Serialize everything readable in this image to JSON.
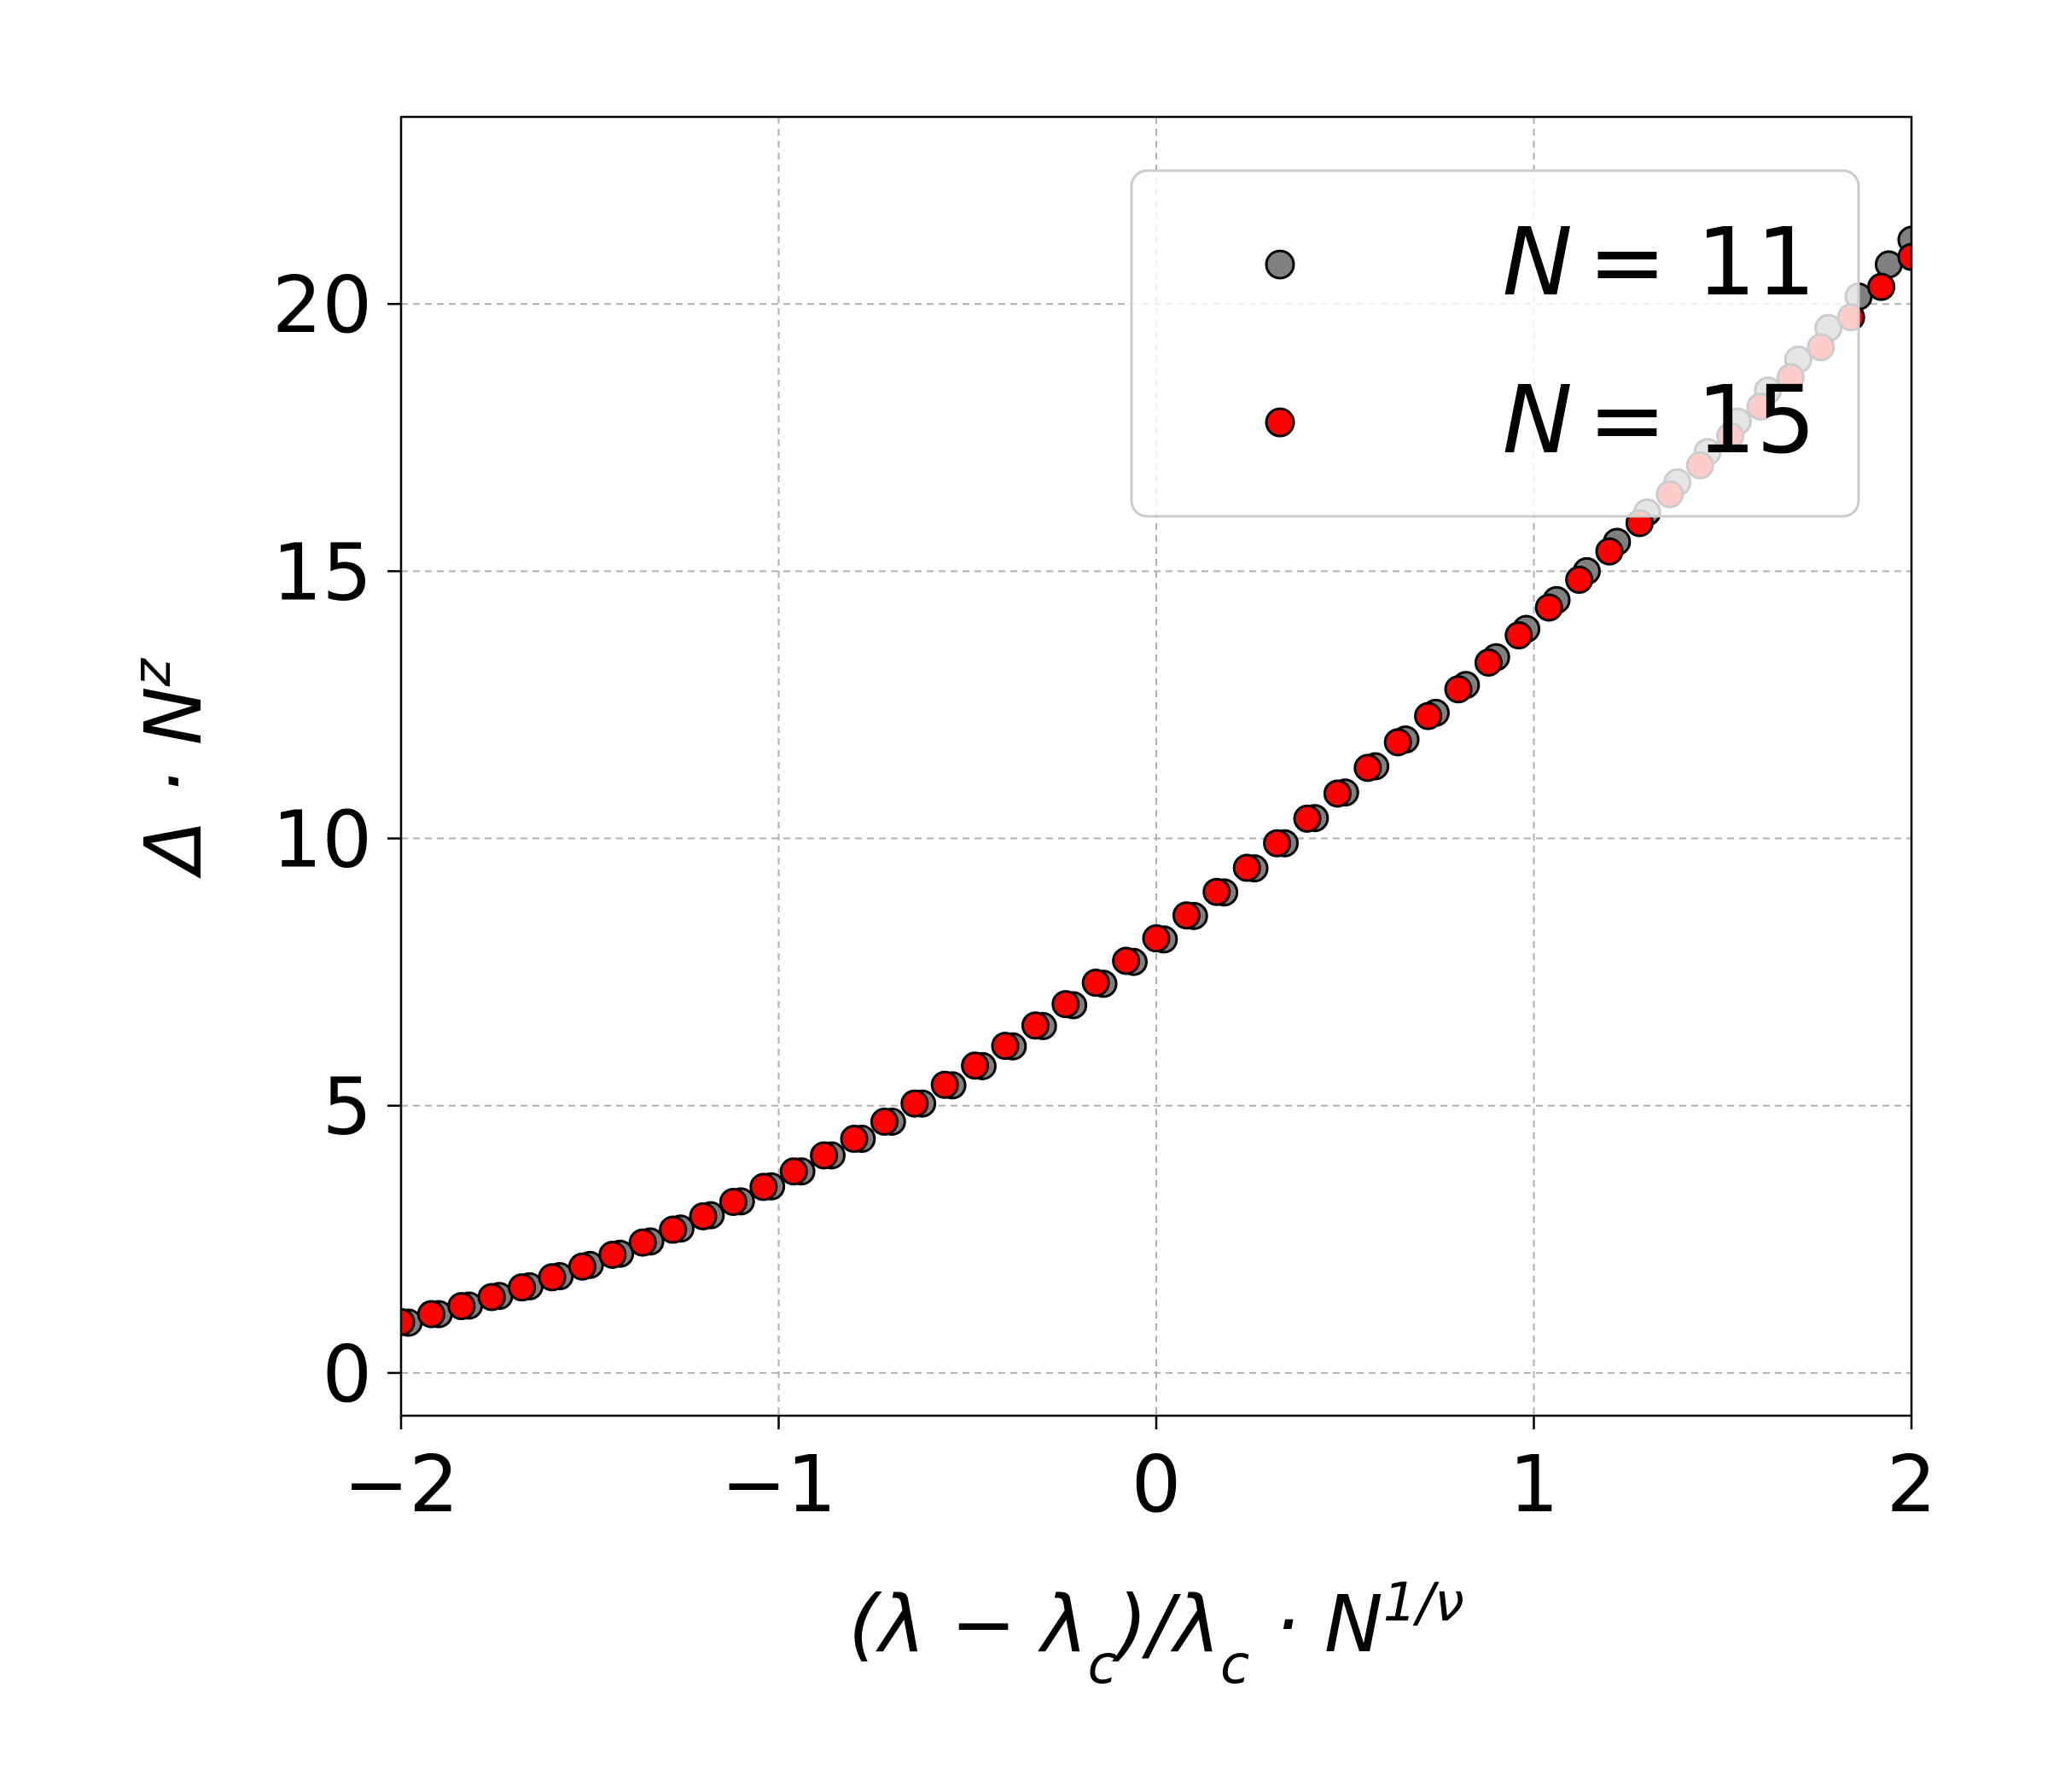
{
  "chart_data": {
    "type": "scatter",
    "xlabel": "(λ − λc)/λc · N^{1/ν}",
    "ylabel": "Δ · N^z",
    "xlim": [
      -2,
      2
    ],
    "ylim": [
      -0.8,
      23.5
    ],
    "xticks": [
      -2,
      -1,
      0,
      1,
      2
    ],
    "xtick_labels": [
      "−2",
      "−1",
      "0",
      "1",
      "2"
    ],
    "yticks": [
      0,
      5,
      10,
      15,
      20
    ],
    "ytick_labels": [
      "0",
      "5",
      "10",
      "15",
      "20"
    ],
    "grid": true,
    "grid_style": "dashed",
    "legend_position": "top-right",
    "series": [
      {
        "name": "N = 11",
        "name_var": "N",
        "name_value": "= 11",
        "color": "#808080",
        "edgecolor": "#000000",
        "x": [
          -1.98,
          -1.9,
          -1.82,
          -1.74,
          -1.66,
          -1.58,
          -1.5,
          -1.42,
          -1.34,
          -1.26,
          -1.18,
          -1.1,
          -1.02,
          -0.94,
          -0.86,
          -0.78,
          -0.7,
          -0.62,
          -0.54,
          -0.46,
          -0.38,
          -0.3,
          -0.22,
          -0.14,
          -0.06,
          0.02,
          0.1,
          0.18,
          0.26,
          0.34,
          0.42,
          0.5,
          0.58,
          0.66,
          0.74,
          0.82,
          0.9,
          0.98,
          1.06,
          1.14,
          1.22,
          1.3,
          1.38,
          1.46,
          1.54,
          1.62,
          1.7,
          1.78,
          1.86,
          1.94,
          2.0
        ],
        "y": [
          0.94,
          1.1,
          1.26,
          1.44,
          1.62,
          1.81,
          2.02,
          2.23,
          2.46,
          2.7,
          2.95,
          3.21,
          3.49,
          3.77,
          4.07,
          4.38,
          4.7,
          5.04,
          5.38,
          5.74,
          6.11,
          6.49,
          6.88,
          7.28,
          7.69,
          8.11,
          8.55,
          8.99,
          9.44,
          9.91,
          10.38,
          10.86,
          11.35,
          11.85,
          12.35,
          12.87,
          13.39,
          13.92,
          14.46,
          15.0,
          15.55,
          16.1,
          16.66,
          17.23,
          17.8,
          18.38,
          18.96,
          19.55,
          20.14,
          20.74,
          21.2
        ]
      },
      {
        "name": "N = 15",
        "name_var": "N",
        "name_value": "= 15",
        "color": "#ff0000",
        "edgecolor": "#000000",
        "x": [
          -2.0,
          -1.92,
          -1.84,
          -1.76,
          -1.68,
          -1.6,
          -1.52,
          -1.44,
          -1.36,
          -1.28,
          -1.2,
          -1.12,
          -1.04,
          -0.96,
          -0.88,
          -0.8,
          -0.72,
          -0.64,
          -0.56,
          -0.48,
          -0.4,
          -0.32,
          -0.24,
          -0.16,
          -0.08,
          0.0,
          0.08,
          0.16,
          0.24,
          0.32,
          0.4,
          0.48,
          0.56,
          0.64,
          0.72,
          0.8,
          0.88,
          0.96,
          1.04,
          1.12,
          1.2,
          1.28,
          1.36,
          1.44,
          1.52,
          1.6,
          1.68,
          1.76,
          1.84,
          1.92,
          2.0
        ],
        "y": [
          0.95,
          1.1,
          1.25,
          1.42,
          1.6,
          1.79,
          1.99,
          2.21,
          2.44,
          2.68,
          2.93,
          3.2,
          3.48,
          3.77,
          4.07,
          4.38,
          4.7,
          5.04,
          5.39,
          5.75,
          6.12,
          6.5,
          6.9,
          7.3,
          7.71,
          8.13,
          8.56,
          9.0,
          9.45,
          9.91,
          10.37,
          10.84,
          11.32,
          11.8,
          12.29,
          12.79,
          13.29,
          13.8,
          14.32,
          14.84,
          15.37,
          15.9,
          16.44,
          16.98,
          17.53,
          18.08,
          18.63,
          19.19,
          19.75,
          20.32,
          20.88
        ]
      }
    ]
  }
}
